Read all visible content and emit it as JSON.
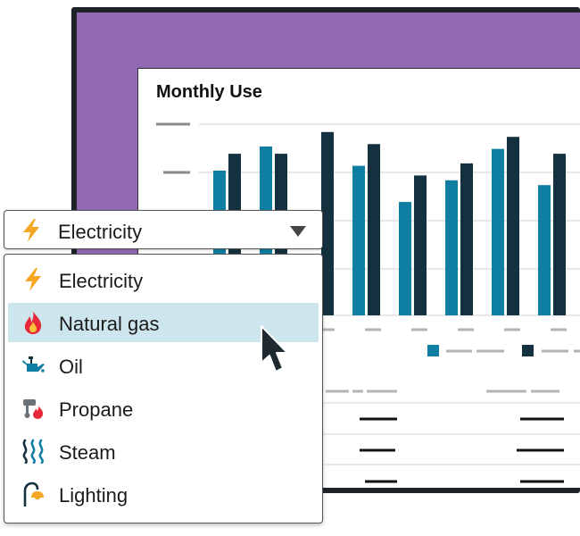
{
  "card": {
    "title": "Monthly Use"
  },
  "selector": {
    "selected_label": "Electricity",
    "selected_icon": "lightning-icon",
    "highlighted": "Natural gas",
    "options": [
      {
        "label": "Electricity",
        "icon": "lightning-icon"
      },
      {
        "label": "Natural gas",
        "icon": "flame-icon"
      },
      {
        "label": "Oil",
        "icon": "oil-can-icon"
      },
      {
        "label": "Propane",
        "icon": "propane-tank-icon"
      },
      {
        "label": "Steam",
        "icon": "steam-icon"
      },
      {
        "label": "Lighting",
        "icon": "lamp-icon"
      }
    ]
  },
  "chart_data": {
    "type": "bar",
    "series": [
      {
        "values": [
          60,
          70,
          0,
          62,
          47,
          56,
          69,
          54
        ],
        "color": "#0e7fa3"
      },
      {
        "values": [
          67,
          67,
          76,
          71,
          58,
          63,
          74,
          67
        ],
        "color": "#15313f"
      }
    ],
    "grid": true
  },
  "colors": {
    "accent": "#0e7fa3",
    "dark": "#15313f",
    "window_bg": "#9169b5",
    "highlight": "#cde5ec",
    "icon_orange": "#f5a623",
    "icon_red": "#e8293b"
  }
}
